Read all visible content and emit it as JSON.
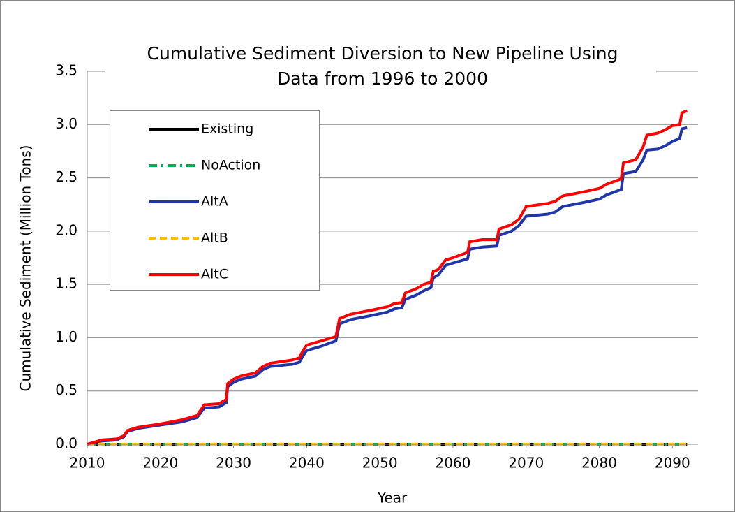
{
  "chart_data": {
    "type": "line",
    "title": [
      "Cumulative Sediment  Diversion to New Pipeline Using",
      "Data from 1996 to 2000"
    ],
    "xlabel": "Year",
    "ylabel": "Cumulative Sediment (Million Tons)",
    "xlim": [
      2010,
      2093.5
    ],
    "xticks": [
      2010,
      2020,
      2030,
      2040,
      2050,
      2060,
      2070,
      2080,
      2090
    ],
    "ylim": [
      0,
      3.5
    ],
    "yticks": [
      {
        "value": 0,
        "label": "0.0"
      },
      {
        "value": 0.5,
        "label": "0.5"
      },
      {
        "value": 1,
        "label": "1.0"
      },
      {
        "value": 1.5,
        "label": "1.5"
      },
      {
        "value": 2,
        "label": "2.0"
      },
      {
        "value": 2.5,
        "label": "2.5"
      },
      {
        "value": 3,
        "label": "3.0"
      },
      {
        "value": 3.5,
        "label": "3.5"
      }
    ],
    "grid": true,
    "legend": "upper left",
    "series": [
      {
        "name": "Existing",
        "color": "#000000",
        "dash": "solid",
        "x": [
          2010,
          2092
        ],
        "values": [
          0,
          0
        ]
      },
      {
        "name": "NoAction",
        "color": "#00b050",
        "dash": "dashdot",
        "x": [
          2010,
          2092
        ],
        "values": [
          0,
          0
        ]
      },
      {
        "name": "AltA",
        "color": "#1f35a8",
        "dash": "solid",
        "x": [
          2010,
          2011,
          2012,
          2014,
          2015,
          2015.5,
          2017,
          2020,
          2023,
          2025,
          2026,
          2028,
          2029,
          2029.2,
          2030,
          2031,
          2033,
          2034,
          2035,
          2038,
          2039,
          2039.5,
          2040,
          2042,
          2044,
          2044.5,
          2046,
          2049,
          2051,
          2052,
          2053,
          2053.5,
          2055,
          2056,
          2057,
          2057.3,
          2058,
          2059,
          2060,
          2062,
          2062.3,
          2064,
          2066,
          2066.3,
          2068,
          2069,
          2070,
          2073,
          2074,
          2075,
          2078,
          2080,
          2081,
          2083,
          2083.3,
          2085,
          2086,
          2086.5,
          2088,
          2089,
          2090,
          2091,
          2091.3,
          2092
        ],
        "values": [
          0,
          0.02,
          0.03,
          0.04,
          0.07,
          0.12,
          0.15,
          0.18,
          0.21,
          0.25,
          0.34,
          0.35,
          0.39,
          0.54,
          0.58,
          0.61,
          0.64,
          0.7,
          0.73,
          0.75,
          0.77,
          0.83,
          0.88,
          0.92,
          0.97,
          1.13,
          1.17,
          1.21,
          1.24,
          1.27,
          1.28,
          1.36,
          1.4,
          1.44,
          1.47,
          1.56,
          1.59,
          1.68,
          1.7,
          1.74,
          1.83,
          1.85,
          1.86,
          1.96,
          2.0,
          2.05,
          2.14,
          2.16,
          2.18,
          2.23,
          2.27,
          2.3,
          2.34,
          2.39,
          2.54,
          2.56,
          2.67,
          2.76,
          2.77,
          2.8,
          2.84,
          2.87,
          2.96,
          2.97
        ]
      },
      {
        "name": "AltB",
        "color": "#ffc000",
        "dash": "dashed",
        "x": [
          2010,
          2092
        ],
        "values": [
          0,
          0
        ]
      },
      {
        "name": "AltC",
        "color": "#ff0000",
        "dash": "solid",
        "x": [
          2010,
          2011,
          2012,
          2014,
          2015,
          2015.5,
          2017,
          2020,
          2023,
          2025,
          2026,
          2028,
          2029,
          2029.2,
          2030,
          2031,
          2033,
          2034,
          2035,
          2038,
          2039,
          2039.5,
          2040,
          2042,
          2044,
          2044.5,
          2046,
          2049,
          2051,
          2052,
          2053,
          2053.5,
          2055,
          2056,
          2057,
          2057.3,
          2058,
          2059,
          2060,
          2062,
          2062.3,
          2064,
          2066,
          2066.3,
          2068,
          2069,
          2070,
          2073,
          2074,
          2075,
          2078,
          2080,
          2081,
          2083,
          2083.3,
          2085,
          2086,
          2086.5,
          2088,
          2089,
          2090,
          2091,
          2091.3,
          2092
        ],
        "values": [
          0,
          0.02,
          0.04,
          0.05,
          0.08,
          0.13,
          0.16,
          0.19,
          0.23,
          0.27,
          0.37,
          0.38,
          0.42,
          0.57,
          0.61,
          0.64,
          0.67,
          0.73,
          0.76,
          0.79,
          0.81,
          0.88,
          0.93,
          0.97,
          1.01,
          1.18,
          1.22,
          1.26,
          1.29,
          1.32,
          1.33,
          1.42,
          1.46,
          1.5,
          1.52,
          1.62,
          1.64,
          1.73,
          1.75,
          1.8,
          1.9,
          1.92,
          1.92,
          2.02,
          2.06,
          2.11,
          2.23,
          2.26,
          2.28,
          2.33,
          2.37,
          2.4,
          2.44,
          2.49,
          2.64,
          2.67,
          2.79,
          2.9,
          2.92,
          2.95,
          2.99,
          3.0,
          3.11,
          3.13
        ]
      }
    ]
  }
}
